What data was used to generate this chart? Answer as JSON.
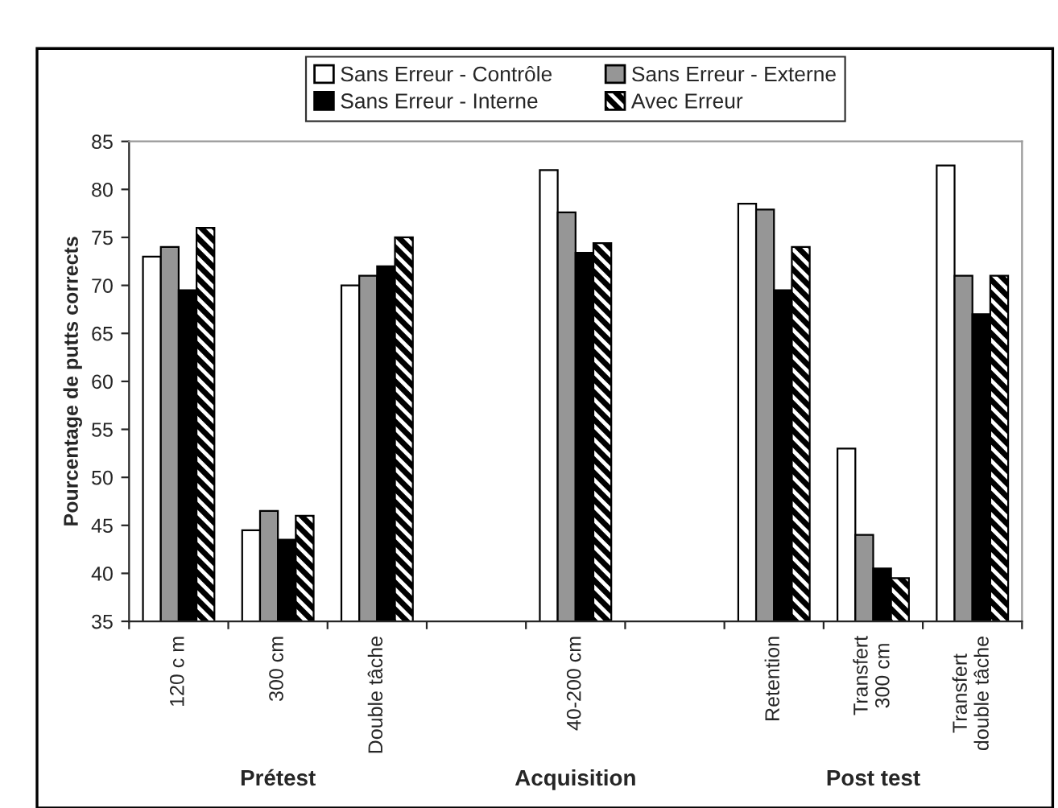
{
  "chart_data": {
    "type": "bar",
    "ylabel": "Pourcentage de putts corrects",
    "categories": [
      "120 c m",
      "300 cm",
      "Double tâche",
      null,
      "40-200 cm",
      null,
      "Retention",
      "Transfert 300 cm",
      "Transfert double tâche"
    ],
    "series": [
      {
        "name": "Sans Erreur - Contrôle",
        "color": "#ffffff",
        "values": [
          73,
          44.5,
          70,
          null,
          82,
          null,
          78.5,
          53,
          82.5
        ]
      },
      {
        "name": "Sans Erreur - Externe",
        "color": "#969696",
        "values": [
          74,
          46.5,
          71,
          null,
          77.6,
          null,
          77.9,
          44,
          71
        ]
      },
      {
        "name": "Sans Erreur - Interne",
        "color": "#000000",
        "values": [
          69.5,
          43.5,
          72,
          null,
          73.4,
          null,
          69.5,
          40.5,
          67
        ]
      },
      {
        "name": "Avec Erreur",
        "color": "#000000",
        "values": [
          76,
          46,
          75,
          null,
          74.4,
          null,
          74,
          39.5,
          71
        ]
      }
    ],
    "ylim": [
      35,
      85
    ],
    "yticks": [
      35,
      40,
      45,
      50,
      55,
      60,
      65,
      70,
      75,
      80,
      85
    ],
    "annotations": [
      "Prétest",
      "Acquisition",
      "Post test"
    ],
    "grid": false,
    "legend": "top"
  }
}
